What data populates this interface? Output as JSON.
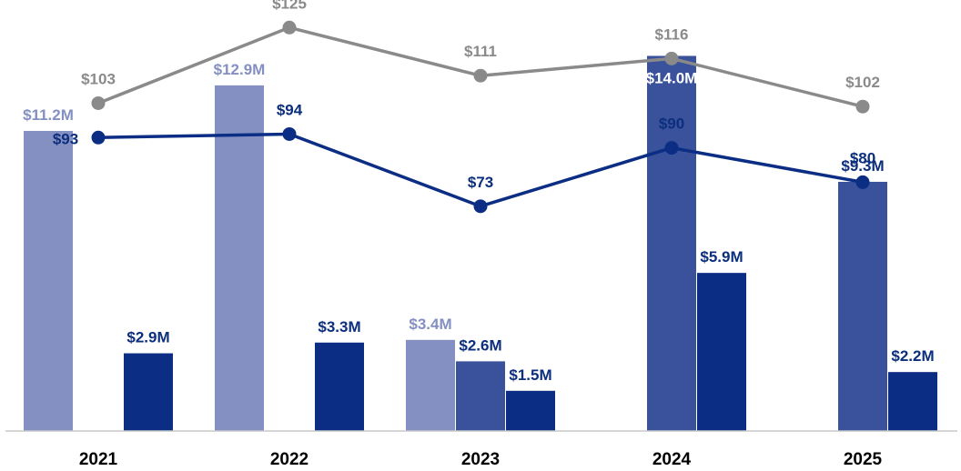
{
  "chart_data": {
    "type": "bar+line",
    "title": "",
    "xlabel": "",
    "ylabel": "",
    "categories": [
      "2021",
      "2022",
      "2023",
      "2024",
      "2025"
    ],
    "bar_ylim": [
      0,
      15.0
    ],
    "line_ylim": [
      60,
      130
    ],
    "bar_series": [
      {
        "key": "light",
        "color": "#8490C1",
        "label_color": "#8490C1",
        "values": [
          11.2,
          12.9,
          3.4,
          null,
          null
        ],
        "labels": [
          "$11.2M",
          "$12.9M",
          "$3.4M",
          "",
          ""
        ]
      },
      {
        "key": "mid",
        "color": "#3A529C",
        "label_color": "#0B2E7D",
        "values": [
          null,
          null,
          2.6,
          14.0,
          9.3
        ],
        "labels": [
          "",
          "",
          "$2.6M",
          "$14.0M",
          "$9.3M"
        ]
      },
      {
        "key": "dark",
        "color": "#0B2E84",
        "label_color": "#0B2E7D",
        "values": [
          2.9,
          3.3,
          1.5,
          5.9,
          2.2
        ],
        "labels": [
          "$2.9M",
          "$3.3M",
          "$1.5M",
          "$5.9M",
          "$2.2M"
        ]
      }
    ],
    "line_series": [
      {
        "key": "gray",
        "color": "#8A8A8A",
        "label_color": "#8A8A8A",
        "values": [
          103,
          125,
          111,
          116,
          102
        ],
        "labels": [
          "$103",
          "$125",
          "$111",
          "$116",
          "$102"
        ]
      },
      {
        "key": "navy",
        "color": "#0B2E84",
        "label_color": "#0B2E7D",
        "values": [
          93,
          94,
          73,
          90,
          80
        ],
        "labels": [
          "$93",
          "$94",
          "$73",
          "$90",
          "$80"
        ]
      }
    ],
    "axis_color": "#C8C8C8",
    "grid": false,
    "legend": "none"
  }
}
